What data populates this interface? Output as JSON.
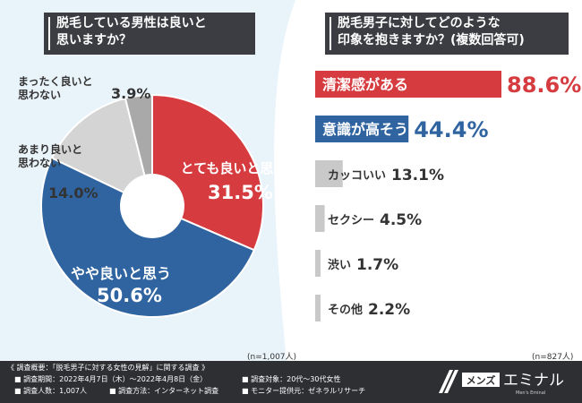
{
  "left": {
    "question": "脱毛している男性は良いと\n思いますか？",
    "n_note": "(n=1,007人)"
  },
  "right": {
    "question": "脱毛男子に対してどのような\n印象を抱きますか？(複数回答可)",
    "n_note": "(n=827人)"
  },
  "display": {
    "pie_values": [
      "31.5%",
      "50.6%",
      "14.0%",
      "3.9%"
    ],
    "bar_values": [
      "88.6%",
      "44.4%",
      "13.1%",
      "4.5%",
      "1.7%",
      "2.2%"
    ]
  },
  "colors": {
    "red": "#d63c3f",
    "blue": "#2f64a1",
    "light_gray": "#d4d4d4",
    "mid_gray": "#a9a9a9",
    "bar_gray": "#c9c9c9",
    "footer_bg": "#2d2f33"
  },
  "chart_data": [
    {
      "type": "pie",
      "title": "脱毛している男性は良いと思いますか？",
      "categories": [
        "とても良いと思う",
        "やや良いと思う",
        "あまり良いと\n思わない",
        "まったく良いと\n思わない"
      ],
      "values": [
        31.5,
        50.6,
        14.0,
        3.9
      ],
      "colors": [
        "#d63c3f",
        "#2f64a1",
        "#d4d4d4",
        "#a9a9a9"
      ],
      "n": "n=1,007人"
    },
    {
      "type": "bar",
      "title": "脱毛男子に対してどのような印象を抱きますか？(複数回答可)",
      "categories": [
        "清潔感がある",
        "意識が高そう",
        "カッコいい",
        "セクシー",
        "渋い",
        "その他"
      ],
      "values": [
        88.6,
        44.4,
        13.1,
        4.5,
        1.7,
        2.2
      ],
      "colors": [
        "#d63c3f",
        "#2f64a1",
        "#c9c9c9",
        "#c9c9c9",
        "#c9c9c9",
        "#c9c9c9"
      ],
      "n": "n=827人"
    }
  ],
  "footer": {
    "summary": "《 調査概要：「脱毛男子に対する女性の見解」に関する調査 》",
    "period": "■ 調査期間：2022年4月7日（木）〜2022年4月8日（金）",
    "target": "■ 調査対象：20代〜30代女性",
    "respondents": "■ 調査人数：1,007人",
    "method": "■ 調査方法：インターネット調査",
    "provider": "■ モニター提供元：ゼネラルリサーチ"
  }
}
